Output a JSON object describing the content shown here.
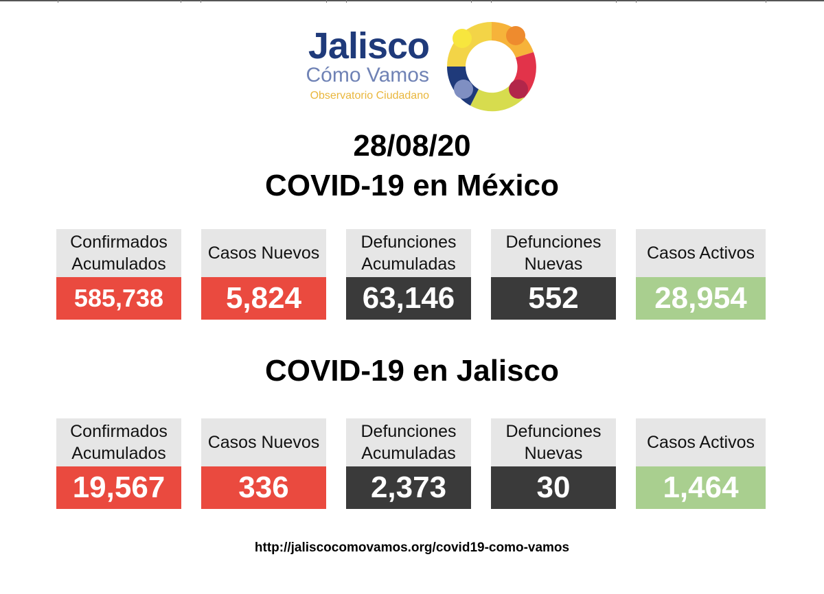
{
  "logo": {
    "name": "Jalisco",
    "subtitle": "Cómo Vamos",
    "tagline": "Observatorio Ciudadano"
  },
  "date": "28/08/20",
  "colors": {
    "red": "#ea4a3f",
    "dark": "#3a3a3a",
    "green": "#a9cf8f",
    "label_bg": "#e6e6e6"
  },
  "mexico": {
    "title": "COVID-19 en México",
    "stats": [
      {
        "label_line1": "Confirmados",
        "label_line2": "Acumulados",
        "value": "585,738"
      },
      {
        "label_line1": "Casos Nuevos",
        "label_line2": "",
        "value": "5,824"
      },
      {
        "label_line1": "Defunciones",
        "label_line2": "Acumuladas",
        "value": "63,146"
      },
      {
        "label_line1": "Defunciones",
        "label_line2": "Nuevas",
        "value": "552"
      },
      {
        "label_line1": "Casos Activos",
        "label_line2": "",
        "value": "28,954"
      }
    ]
  },
  "jalisco": {
    "title": "COVID-19 en Jalisco",
    "stats": [
      {
        "label_line1": "Confirmados",
        "label_line2": "Acumulados",
        "value": "19,567"
      },
      {
        "label_line1": "Casos Nuevos",
        "label_line2": "",
        "value": "336"
      },
      {
        "label_line1": "Defunciones",
        "label_line2": "Acumuladas",
        "value": "2,373"
      },
      {
        "label_line1": "Defunciones",
        "label_line2": "Nuevas",
        "value": "30"
      },
      {
        "label_line1": "Casos Activos",
        "label_line2": "",
        "value": "1,464"
      }
    ]
  },
  "footer": {
    "url": "http://jaliscocomovamos.org/covid19-como-vamos"
  }
}
